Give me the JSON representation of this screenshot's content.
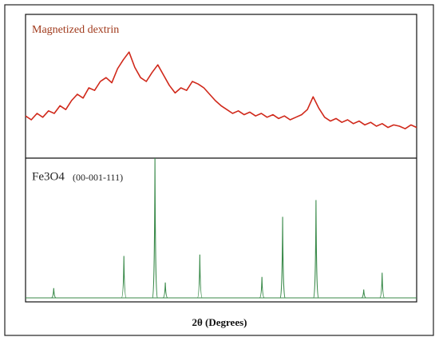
{
  "chart_data": [
    {
      "type": "line",
      "panel": "top",
      "x": [
        13,
        14,
        15,
        16,
        17,
        18,
        19,
        20,
        21,
        22,
        23,
        24,
        25,
        26,
        27,
        28,
        29,
        30,
        31,
        32,
        33,
        34,
        35,
        36,
        37,
        38,
        39,
        40,
        41,
        42,
        43,
        44,
        45,
        46,
        47,
        48,
        49,
        50,
        51,
        52,
        53,
        54,
        55,
        56,
        57,
        58,
        59,
        60,
        61,
        62,
        63,
        64,
        65,
        66,
        67,
        68,
        69,
        70,
        71,
        72,
        73,
        74,
        75,
        76,
        77,
        78,
        79,
        80,
        81
      ],
      "series": [
        {
          "name": "Magnetized dextrin",
          "color": "#d0281a",
          "values": [
            28,
            25,
            30,
            27,
            32,
            30,
            36,
            33,
            40,
            45,
            42,
            50,
            48,
            55,
            58,
            54,
            65,
            72,
            78,
            66,
            58,
            55,
            62,
            68,
            60,
            52,
            46,
            50,
            48,
            55,
            53,
            50,
            45,
            40,
            36,
            33,
            30,
            32,
            29,
            31,
            28,
            30,
            27,
            29,
            26,
            28,
            25,
            27,
            29,
            33,
            43,
            34,
            27,
            24,
            26,
            23,
            25,
            22,
            24,
            21,
            23,
            20,
            22,
            19,
            21,
            20,
            18,
            21,
            19
          ]
        }
      ],
      "xlim": [
        13,
        81
      ],
      "ylim": [
        0,
        100
      ]
    },
    {
      "type": "stick",
      "panel": "bottom",
      "x": [
        17.9,
        30.1,
        35.5,
        37.3,
        43.3,
        54.1,
        57.7,
        63.5,
        71.8,
        75.0
      ],
      "series": [
        {
          "name": "Fe3O4",
          "reference": "(00-001-111)",
          "color": "#3a8a4a",
          "values": [
            7,
            30,
            100,
            11,
            31,
            15,
            58,
            70,
            6,
            18
          ]
        }
      ],
      "xlim": [
        13,
        81
      ],
      "ylim": [
        0,
        100
      ],
      "xlabel": "2θ (Degrees)"
    }
  ]
}
